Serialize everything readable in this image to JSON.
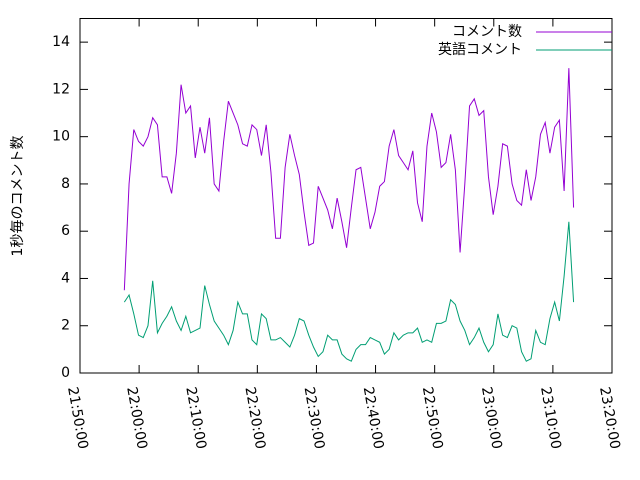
{
  "chart_data": {
    "type": "line",
    "y_label": "1秒毎のコメント数",
    "x": [
      "21:57:30",
      "21:58:18",
      "21:59:06",
      "21:59:54",
      "22:00:42",
      "22:01:30",
      "22:02:18",
      "22:03:06",
      "22:03:54",
      "22:04:42",
      "22:05:30",
      "22:06:18",
      "22:07:06",
      "22:07:54",
      "22:08:42",
      "22:09:30",
      "22:10:18",
      "22:11:06",
      "22:11:54",
      "22:12:42",
      "22:13:30",
      "22:14:18",
      "22:15:06",
      "22:15:54",
      "22:16:42",
      "22:17:30",
      "22:18:18",
      "22:19:06",
      "22:19:54",
      "22:20:42",
      "22:21:30",
      "22:22:18",
      "22:23:06",
      "22:23:54",
      "22:24:42",
      "22:25:30",
      "22:26:18",
      "22:27:06",
      "22:27:54",
      "22:28:42",
      "22:29:30",
      "22:30:18",
      "22:31:06",
      "22:31:54",
      "22:32:42",
      "22:33:30",
      "22:34:18",
      "22:35:06",
      "22:35:54",
      "22:36:42",
      "22:37:30",
      "22:38:18",
      "22:39:06",
      "22:39:54",
      "22:40:42",
      "22:41:30",
      "22:42:18",
      "22:43:06",
      "22:43:54",
      "22:44:42",
      "22:45:30",
      "22:46:18",
      "22:47:06",
      "22:47:54",
      "22:48:42",
      "22:49:30",
      "22:50:18",
      "22:51:06",
      "22:51:54",
      "22:52:42",
      "22:53:30",
      "22:54:18",
      "22:55:06",
      "22:55:54",
      "22:56:42",
      "22:57:30",
      "22:58:18",
      "22:59:06",
      "22:59:54",
      "23:00:42",
      "23:01:30",
      "23:02:18",
      "23:03:06",
      "23:03:54",
      "23:04:42",
      "23:05:30",
      "23:06:18",
      "23:07:06",
      "23:07:54",
      "23:08:42",
      "23:09:30",
      "23:10:18",
      "23:11:06",
      "23:11:54",
      "23:12:42",
      "23:13:30"
    ],
    "series": [
      {
        "name": "コメント数",
        "color": "#9400d3",
        "values": [
          3.5,
          8,
          10.3,
          9.8,
          9.6,
          10,
          10.8,
          10.5,
          8.3,
          8.3,
          7.6,
          9.3,
          12.2,
          11,
          11.3,
          9.1,
          10.4,
          9.3,
          10.8,
          8,
          7.7,
          9.8,
          11.5,
          11,
          10.5,
          9.7,
          9.6,
          10.5,
          10.3,
          9.2,
          10.5,
          8.5,
          5.7,
          5.7,
          8.7,
          10.1,
          9.2,
          8.4,
          6.8,
          5.4,
          5.5,
          7.9,
          7.4,
          6.9,
          6.1,
          7.4,
          6.4,
          5.3,
          7,
          8.6,
          8.7,
          7.4,
          6.1,
          6.8,
          7.9,
          8.1,
          9.6,
          10.3,
          9.2,
          8.9,
          8.6,
          9.4,
          7.2,
          6.4,
          9.6,
          11,
          10.2,
          8.7,
          8.9,
          10.1,
          8.6,
          5.1,
          8,
          11.3,
          11.6,
          10.9,
          11.1,
          8.3,
          6.7,
          7.9,
          9.7,
          9.6,
          8,
          7.3,
          7.1,
          8.6,
          7.3,
          8.3,
          10.1,
          10.6,
          9.3,
          10.4,
          10.7,
          7.7,
          12.9,
          7
        ]
      },
      {
        "name": "英語コメント",
        "color": "#009e73",
        "values": [
          3,
          3.3,
          2.5,
          1.6,
          1.5,
          2,
          3.9,
          1.7,
          2.1,
          2.4,
          2.8,
          2.2,
          1.8,
          2.4,
          1.7,
          1.8,
          1.9,
          3.7,
          2.9,
          2.2,
          1.9,
          1.6,
          1.2,
          1.8,
          3,
          2.5,
          2.5,
          1.4,
          1.2,
          2.5,
          2.3,
          1.4,
          1.4,
          1.5,
          1.3,
          1.1,
          1.6,
          2.3,
          2.2,
          1.6,
          1.1,
          0.7,
          0.9,
          1.6,
          1.4,
          1.4,
          0.8,
          0.6,
          0.5,
          1,
          1.2,
          1.2,
          1.5,
          1.4,
          1.3,
          0.8,
          1,
          1.7,
          1.4,
          1.6,
          1.7,
          1.7,
          1.9,
          1.3,
          1.4,
          1.3,
          2.1,
          2.1,
          2.2,
          3.1,
          2.9,
          2.2,
          1.8,
          1.2,
          1.5,
          1.9,
          1.3,
          0.9,
          1.2,
          2.5,
          1.6,
          1.5,
          2,
          1.9,
          0.9,
          0.5,
          0.6,
          1.8,
          1.3,
          1.2,
          2.3,
          3,
          2.2,
          4.1,
          6.4,
          3
        ]
      }
    ],
    "xlim": [
      "21:50:00",
      "23:20:00"
    ],
    "xticks": [
      "21:50:00",
      "22:00:00",
      "22:10:00",
      "22:20:00",
      "22:30:00",
      "22:40:00",
      "22:50:00",
      "23:00:00",
      "23:10:00",
      "23:20:00"
    ],
    "ylim": [
      0,
      15
    ],
    "yticks": [
      0,
      2,
      4,
      6,
      8,
      10,
      12,
      14
    ],
    "legend": "top right"
  }
}
